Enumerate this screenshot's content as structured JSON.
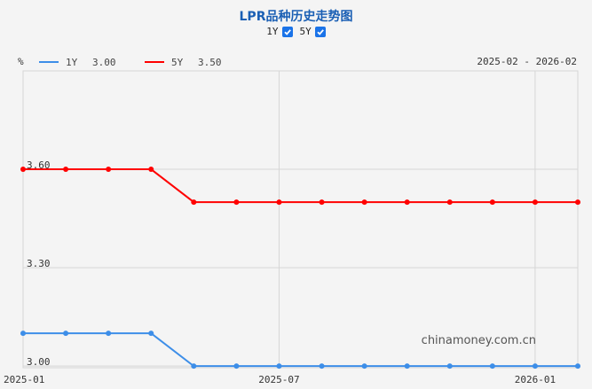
{
  "title": "LPR品种历史走势图",
  "toggles": [
    {
      "label": "1Y",
      "checked": true
    },
    {
      "label": "5Y",
      "checked": true
    }
  ],
  "unit_label": "%",
  "date_range": "2025-02 - 2026-02",
  "watermark": "chinamoney.com.cn",
  "chart_data": {
    "type": "line",
    "x": [
      "2025-01",
      "2025-02",
      "2025-03",
      "2025-04",
      "2025-05",
      "2025-06",
      "2025-07",
      "2025-08",
      "2025-09",
      "2025-10",
      "2025-11",
      "2025-12",
      "2026-01",
      "2026-02"
    ],
    "xticks": [
      "2025-01",
      "2025-07",
      "2026-01"
    ],
    "yticks": [
      "3.60",
      "3.30",
      "3.00"
    ],
    "ylim": [
      2.995,
      3.9
    ],
    "grid": true,
    "series": [
      {
        "name": "1Y",
        "legend_value": "3.00",
        "color": "#3d8ee8",
        "values": [
          3.1,
          3.1,
          3.1,
          3.1,
          3.0,
          3.0,
          3.0,
          3.0,
          3.0,
          3.0,
          3.0,
          3.0,
          3.0,
          3.0
        ]
      },
      {
        "name": "5Y",
        "legend_value": "3.50",
        "color": "#ff0000",
        "values": [
          3.6,
          3.6,
          3.6,
          3.6,
          3.5,
          3.5,
          3.5,
          3.5,
          3.5,
          3.5,
          3.5,
          3.5,
          3.5,
          3.5
        ]
      }
    ]
  }
}
